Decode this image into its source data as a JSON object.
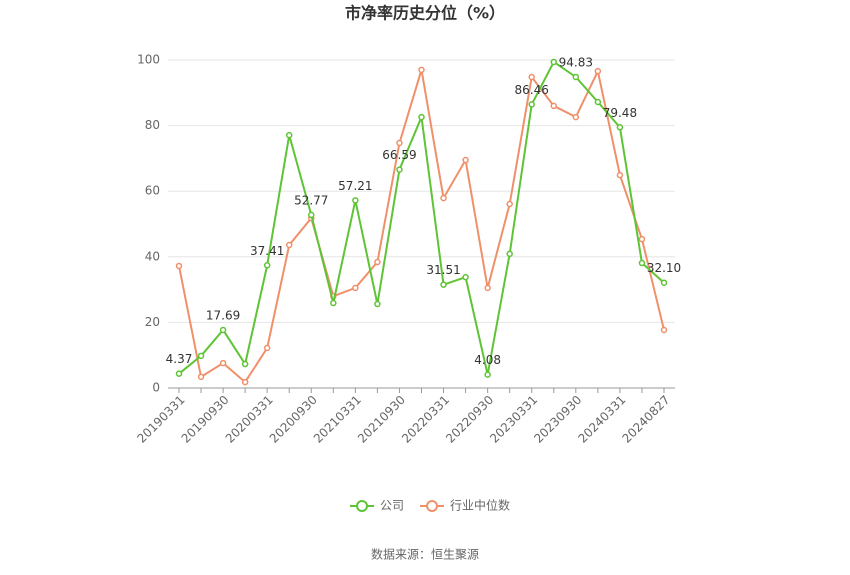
{
  "chart_data": {
    "type": "line",
    "title": "市净率历史分位（%）",
    "categories": [
      "20190331",
      null,
      "20190930",
      null,
      "20200331",
      null,
      "20200930",
      null,
      "20210331",
      null,
      "20210930",
      null,
      "20220331",
      null,
      "20220930",
      null,
      "20230331",
      null,
      "20230930",
      null,
      "20240331",
      null,
      "20240827"
    ],
    "series": [
      {
        "name": "公司",
        "color": "#5ec435",
        "values": [
          4.37,
          9.8,
          17.69,
          7.3,
          37.41,
          77.1,
          52.77,
          25.9,
          57.21,
          25.6,
          66.59,
          82.6,
          31.51,
          33.8,
          4.08,
          40.9,
          86.46,
          99.4,
          94.83,
          87.2,
          79.48,
          38.1,
          32.1
        ],
        "value_labels": [
          "4.37",
          null,
          "17.69",
          null,
          "37.41",
          null,
          "52.77",
          null,
          "57.21",
          null,
          "66.59",
          null,
          "31.51",
          null,
          "4.08",
          null,
          "86.46",
          null,
          "94.83",
          null,
          "79.48",
          null,
          "32.10"
        ]
      },
      {
        "name": "行业中位数",
        "color": "#f0906a",
        "values": [
          37.2,
          3.4,
          7.6,
          1.8,
          12.2,
          43.6,
          51.8,
          28.0,
          30.5,
          38.4,
          74.7,
          97.0,
          57.9,
          69.5,
          30.5,
          56.1,
          94.8,
          86.0,
          82.6,
          96.6,
          64.9,
          45.4,
          17.7
        ]
      }
    ],
    "ylim": [
      0,
      100
    ],
    "yticks": [
      0,
      20,
      40,
      60,
      80,
      100
    ],
    "grid": true,
    "legend": "bottom",
    "source": "数据来源：恒生聚源"
  }
}
